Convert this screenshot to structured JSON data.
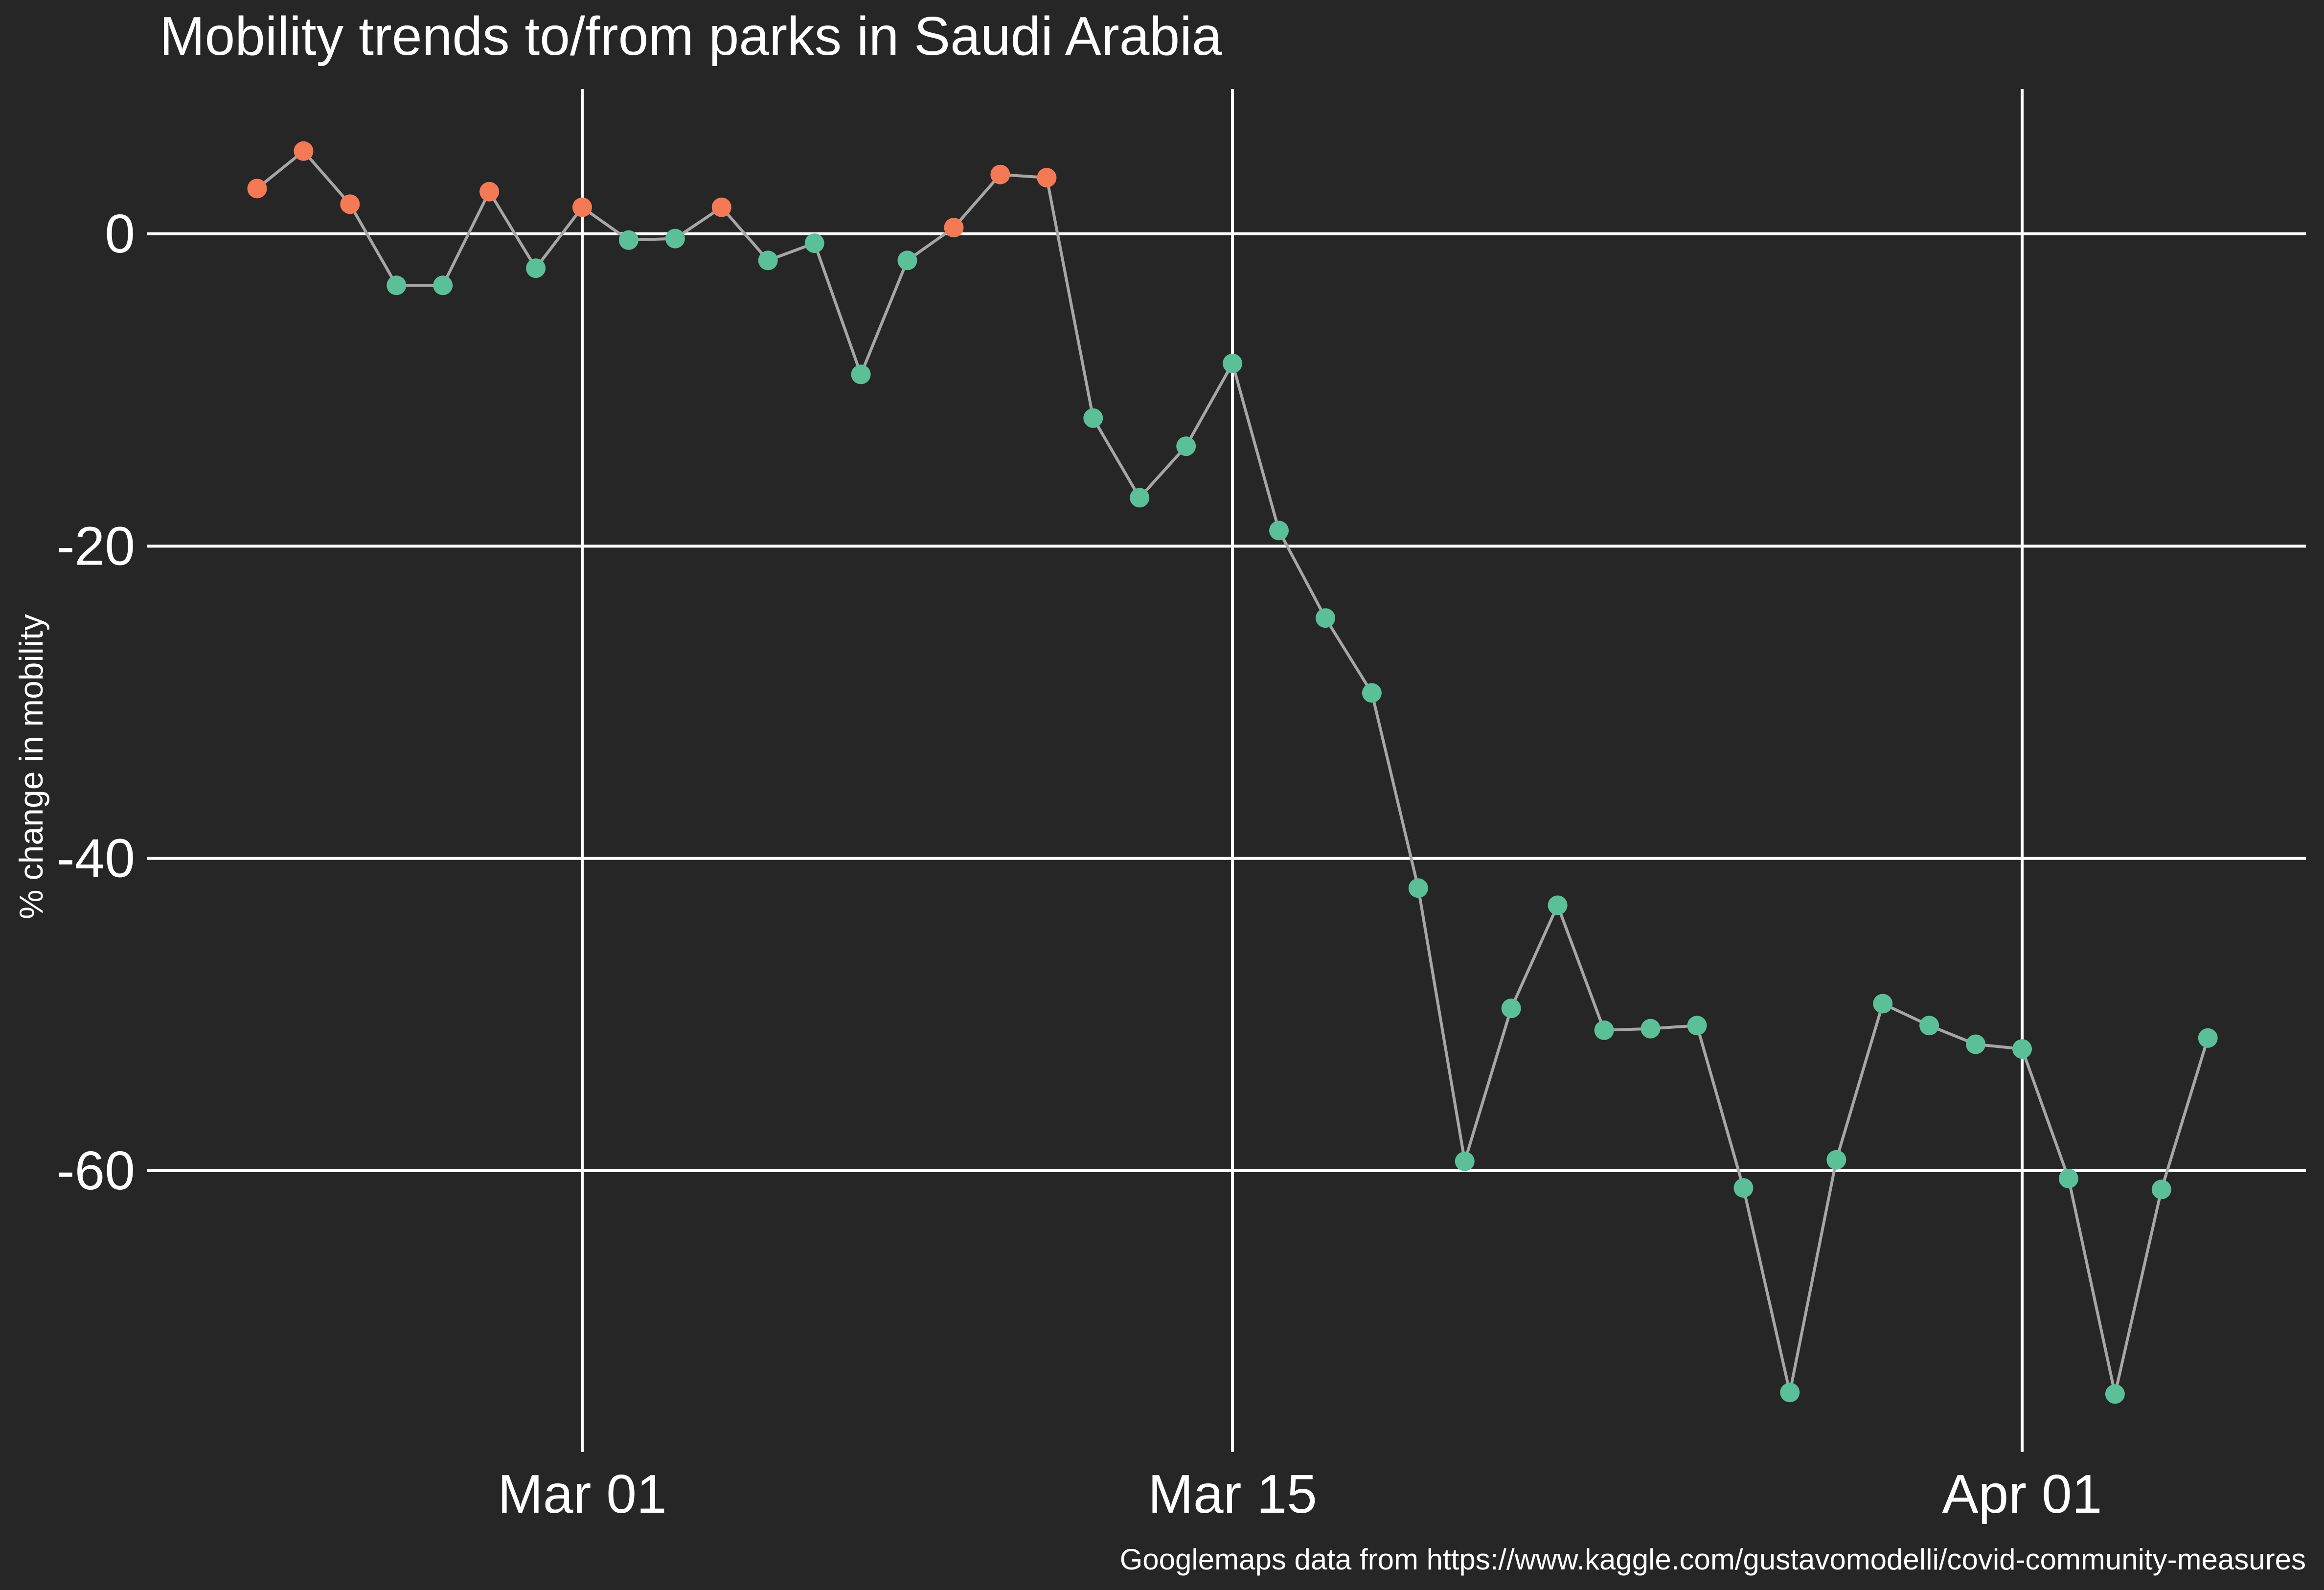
{
  "chart_data": {
    "type": "line",
    "title": "Mobility trends to/from parks in Saudi Arabia",
    "xlabel": "",
    "ylabel": "% change in mobility",
    "caption": "Googlemaps data from https://www.kaggle.com/gustavomodelli/covid-community-measures",
    "x_ticks": [
      {
        "date": "2020-03-01",
        "label": "Mar 01"
      },
      {
        "date": "2020-03-15",
        "label": "Mar 15"
      },
      {
        "date": "2020-04-01",
        "label": "Apr 01"
      }
    ],
    "y_ticks": [
      {
        "value": 0,
        "label": "0"
      },
      {
        "value": -20,
        "label": "-20"
      },
      {
        "value": -40,
        "label": "-40"
      },
      {
        "value": -60,
        "label": "-60"
      }
    ],
    "xlim": [
      "2020-02-20",
      "2020-04-07"
    ],
    "ylim": [
      -78,
      9
    ],
    "grid": true,
    "legend": "none",
    "colors": {
      "positive": "#f47a55",
      "negative": "#5bbf98",
      "line": "#a6a6a6",
      "background": "#262626",
      "grid": "#ffffff"
    },
    "points": [
      {
        "date": "2020-02-23",
        "y": 2.9
      },
      {
        "date": "2020-02-24",
        "y": 5.3
      },
      {
        "date": "2020-02-25",
        "y": 1.9
      },
      {
        "date": "2020-02-26",
        "y": -3.3
      },
      {
        "date": "2020-02-27",
        "y": -3.3
      },
      {
        "date": "2020-02-28",
        "y": 2.7
      },
      {
        "date": "2020-02-29",
        "y": -2.2
      },
      {
        "date": "2020-03-01",
        "y": 1.7
      },
      {
        "date": "2020-03-02",
        "y": -0.4
      },
      {
        "date": "2020-03-03",
        "y": -0.3
      },
      {
        "date": "2020-03-04",
        "y": 1.7
      },
      {
        "date": "2020-03-05",
        "y": -1.7
      },
      {
        "date": "2020-03-06",
        "y": -0.6
      },
      {
        "date": "2020-03-07",
        "y": -9.0
      },
      {
        "date": "2020-03-08",
        "y": -1.7
      },
      {
        "date": "2020-03-09",
        "y": 0.4
      },
      {
        "date": "2020-03-10",
        "y": 3.8
      },
      {
        "date": "2020-03-11",
        "y": 3.6
      },
      {
        "date": "2020-03-12",
        "y": -11.8
      },
      {
        "date": "2020-03-13",
        "y": -16.9
      },
      {
        "date": "2020-03-14",
        "y": -13.6
      },
      {
        "date": "2020-03-15",
        "y": -8.3
      },
      {
        "date": "2020-03-16",
        "y": -19.0
      },
      {
        "date": "2020-03-17",
        "y": -24.6
      },
      {
        "date": "2020-03-18",
        "y": -29.4
      },
      {
        "date": "2020-03-19",
        "y": -41.9
      },
      {
        "date": "2020-03-20",
        "y": -59.4
      },
      {
        "date": "2020-03-21",
        "y": -49.6
      },
      {
        "date": "2020-03-22",
        "y": -43.0
      },
      {
        "date": "2020-03-23",
        "y": -51.0
      },
      {
        "date": "2020-03-24",
        "y": -50.9
      },
      {
        "date": "2020-03-25",
        "y": -50.7
      },
      {
        "date": "2020-03-26",
        "y": -61.1
      },
      {
        "date": "2020-03-27",
        "y": -74.2
      },
      {
        "date": "2020-03-28",
        "y": -59.3
      },
      {
        "date": "2020-03-29",
        "y": -49.3
      },
      {
        "date": "2020-03-30",
        "y": -50.7
      },
      {
        "date": "2020-03-31",
        "y": -51.9
      },
      {
        "date": "2020-04-01",
        "y": -52.2
      },
      {
        "date": "2020-04-02",
        "y": -60.5
      },
      {
        "date": "2020-04-03",
        "y": -74.3
      },
      {
        "date": "2020-04-04",
        "y": -61.2
      },
      {
        "date": "2020-04-05",
        "y": -51.5
      }
    ]
  }
}
